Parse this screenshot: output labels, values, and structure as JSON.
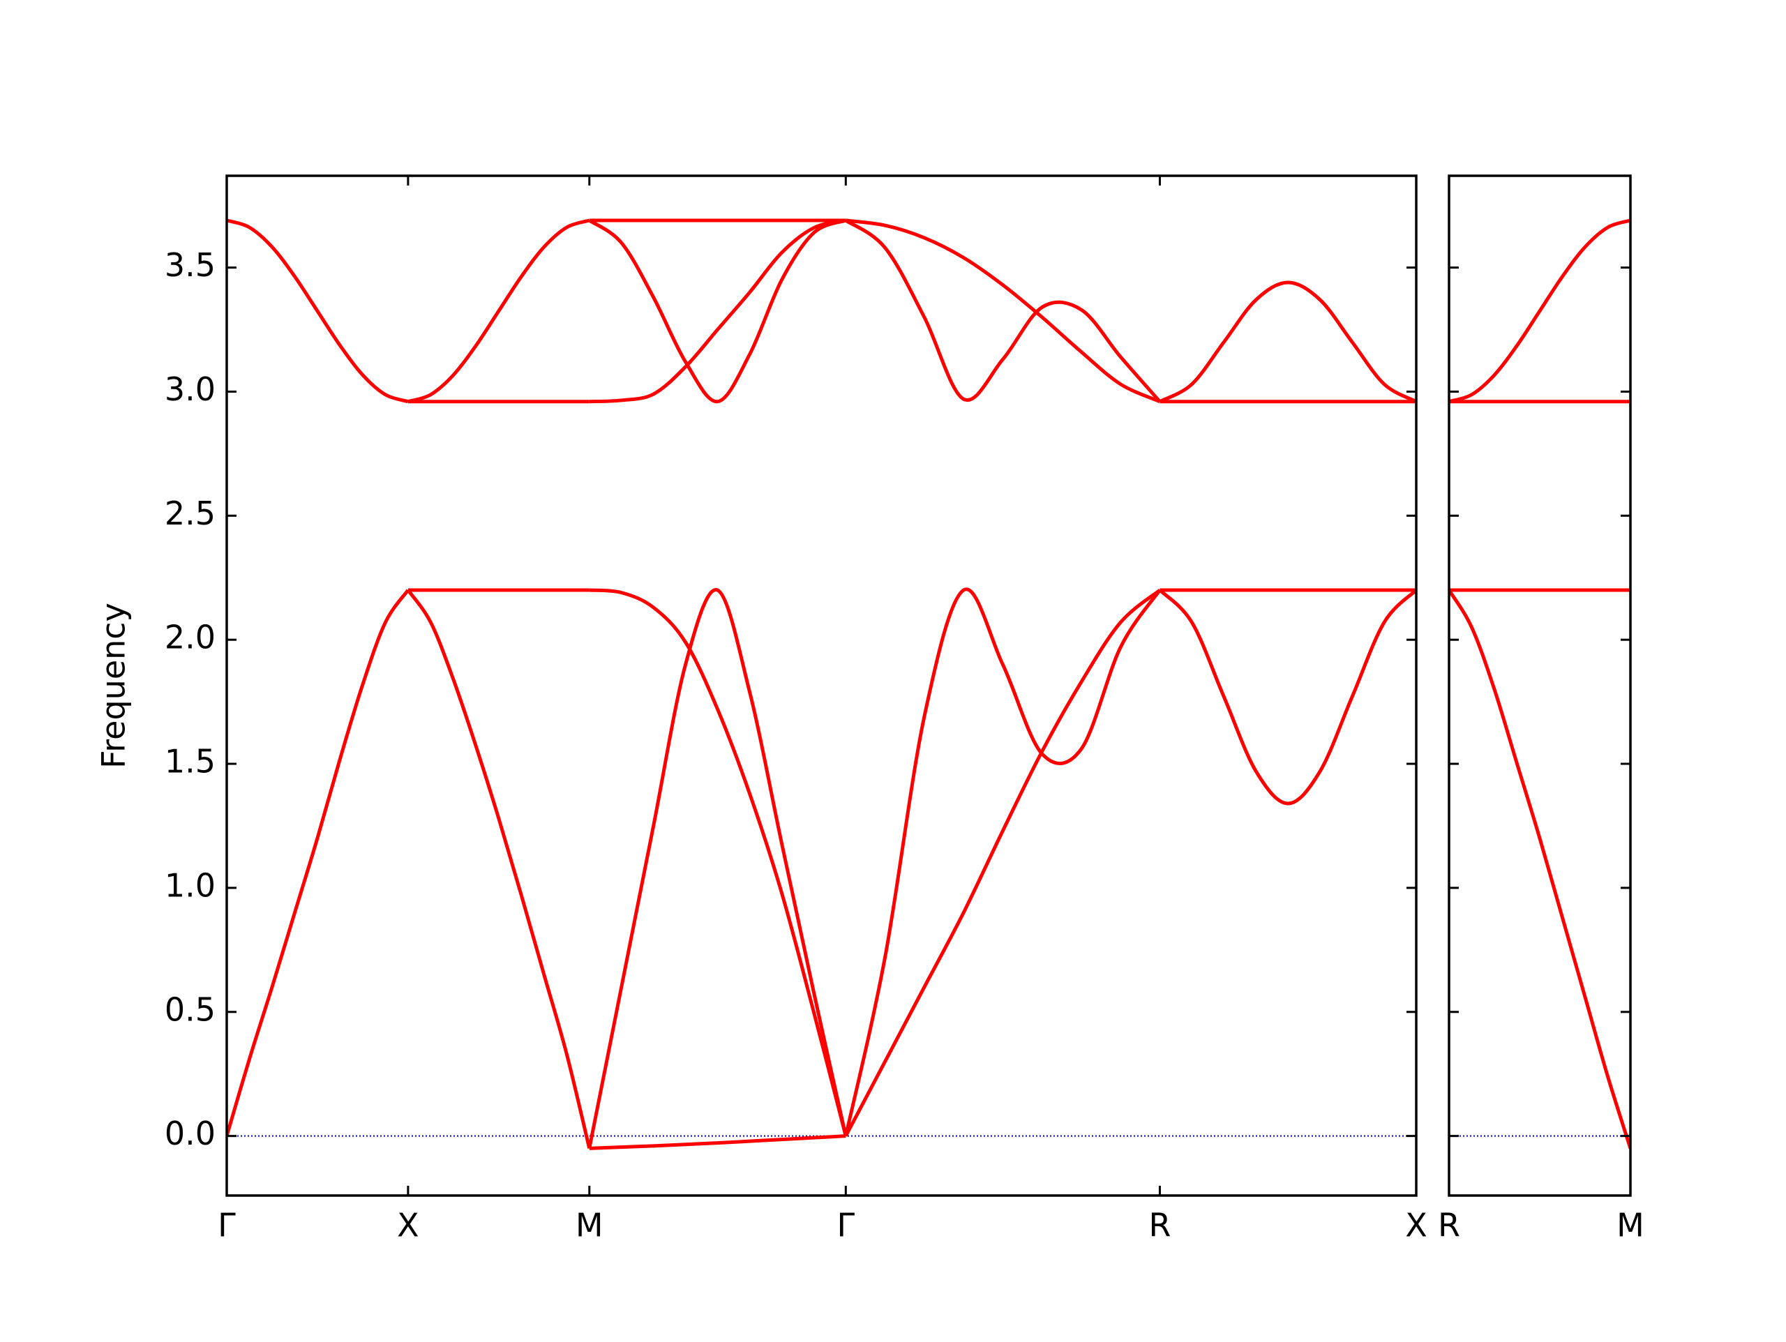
{
  "chart_data": [
    {
      "type": "line",
      "ylabel": "Frequency",
      "line_color": "#ff0000",
      "hline": 0,
      "hline_color": "#0000cc",
      "xlim": [
        0,
        6.5605
      ],
      "ylim": [
        -0.24,
        3.87
      ],
      "xticks": [
        {
          "value": 0,
          "label": "Γ"
        },
        {
          "value": 1,
          "label": "X"
        },
        {
          "value": 2,
          "label": "M"
        },
        {
          "value": 3.4142,
          "label": "Γ"
        },
        {
          "value": 5.1463,
          "label": "R"
        },
        {
          "value": 6.5605,
          "label": "X"
        }
      ],
      "yticks": [
        {
          "value": 0,
          "label": "0.0"
        },
        0.5,
        {
          "value": 1,
          "label": "1.0"
        },
        1.5,
        {
          "value": 2,
          "label": "2.0"
        },
        2.5,
        {
          "value": 3,
          "label": "3.0"
        },
        3.5
      ],
      "show_ytick_labels": true,
      "series": [
        {
          "x": [
            0,
            0.125,
            0.25,
            0.375,
            0.5,
            0.625,
            0.75,
            0.875,
            1
          ],
          "values": [
            3.69,
            3.662,
            3.583,
            3.464,
            3.325,
            3.186,
            3.067,
            2.988,
            2.96
          ]
        },
        {
          "x": [
            0,
            0.125,
            0.25,
            0.375,
            0.5,
            0.625,
            0.75,
            0.875,
            1
          ],
          "values": [
            0,
            0.31,
            0.6,
            0.9,
            1.2,
            1.52,
            1.82,
            2.07,
            2.2
          ]
        },
        {
          "x": [
            1,
            1.125,
            1.25,
            1.375,
            1.5,
            1.625,
            1.75,
            1.875,
            2
          ],
          "values": [
            2.96,
            2.988,
            3.067,
            3.186,
            3.325,
            3.464,
            3.583,
            3.662,
            3.69
          ]
        },
        {
          "x": [
            1,
            2
          ],
          "values": [
            2.96,
            2.96
          ]
        },
        {
          "x": [
            1,
            2
          ],
          "values": [
            2.2,
            2.2
          ]
        },
        {
          "x": [
            1,
            1.125,
            1.25,
            1.375,
            1.5,
            1.625,
            1.75,
            1.875,
            2
          ],
          "values": [
            2.2,
            2.07,
            1.84,
            1.57,
            1.28,
            0.97,
            0.65,
            0.33,
            -0.05
          ]
        },
        {
          "x": [
            2,
            3.4142
          ],
          "values": [
            3.69,
            3.69
          ]
        },
        {
          "x": [
            2,
            2.1768,
            2.3536,
            2.5303,
            2.7071,
            2.8839,
            3.0607,
            3.2374,
            3.4142
          ],
          "values": [
            3.69,
            3.6,
            3.38,
            3.12,
            2.96,
            3.15,
            3.45,
            3.64,
            3.69
          ]
        },
        {
          "x": [
            2,
            2.1768,
            2.3536,
            2.5303,
            2.7071,
            2.8839,
            3.0607,
            3.2374,
            3.4142
          ],
          "values": [
            2.96,
            2.965,
            2.99,
            3.1,
            3.25,
            3.4,
            3.56,
            3.66,
            3.69
          ]
        },
        {
          "x": [
            2,
            2.1768,
            2.3536,
            2.5303,
            2.7071,
            2.8839,
            3.0607,
            3.2374,
            3.4142
          ],
          "values": [
            2.2,
            2.19,
            2.13,
            1.99,
            1.72,
            1.38,
            0.98,
            0.5,
            0
          ]
        },
        {
          "x": [
            2,
            2.1768,
            2.3536,
            2.5303,
            2.7071,
            2.8839,
            3.0607,
            3.2374,
            3.4142
          ],
          "values": [
            -0.05,
            0.6,
            1.25,
            1.9,
            2.2,
            1.79,
            1.18,
            0.58,
            0
          ]
        },
        {
          "x": [
            2,
            2.1768,
            2.3536,
            2.5303,
            2.7071,
            2.8839,
            3.0607,
            3.2374,
            3.4142
          ],
          "values": [
            -0.05,
            -0.045,
            -0.04,
            -0.034,
            -0.028,
            -0.021,
            -0.014,
            -0.007,
            0
          ]
        },
        {
          "x": [
            3.4142,
            3.6307,
            3.8472,
            4.0637,
            4.2802,
            4.4968,
            4.7133,
            4.9298,
            5.1463
          ],
          "values": [
            3.69,
            3.67,
            3.62,
            3.54,
            3.43,
            3.3,
            3.16,
            3.03,
            2.96
          ]
        },
        {
          "x": [
            3.4142,
            3.6307,
            3.8472,
            4.0637,
            4.2802,
            4.4968,
            4.7133,
            4.9298,
            5.1463
          ],
          "values": [
            3.69,
            3.58,
            3.3,
            2.97,
            3.13,
            3.34,
            3.33,
            3.14,
            2.96
          ]
        },
        {
          "x": [
            3.4142,
            3.6307,
            3.8472,
            4.0637,
            4.2802,
            4.4968,
            4.7133,
            4.9298,
            5.1463
          ],
          "values": [
            0,
            0.72,
            1.69,
            2.2,
            1.9,
            1.54,
            1.56,
            1.97,
            2.2
          ]
        },
        {
          "x": [
            3.4142,
            3.6307,
            3.8472,
            4.0637,
            4.2802,
            4.4968,
            4.7133,
            4.9298,
            5.1463
          ],
          "values": [
            0,
            0.3,
            0.6,
            0.9,
            1.23,
            1.55,
            1.83,
            2.07,
            2.2
          ]
        },
        {
          "x": [
            5.1463,
            6.5605
          ],
          "values": [
            2.96,
            2.96
          ]
        },
        {
          "x": [
            5.1463,
            5.3231,
            5.4998,
            5.6766,
            5.8534,
            6.0302,
            6.2069,
            6.3837,
            6.5605
          ],
          "values": [
            2.96,
            3.03,
            3.2,
            3.37,
            3.44,
            3.37,
            3.2,
            3.03,
            2.96
          ]
        },
        {
          "x": [
            5.1463,
            6.5605
          ],
          "values": [
            2.2,
            2.2
          ]
        },
        {
          "x": [
            5.1463,
            5.3231,
            5.4998,
            5.6766,
            5.8534,
            6.0302,
            6.2069,
            6.3837,
            6.5605
          ],
          "values": [
            2.2,
            2.07,
            1.77,
            1.47,
            1.34,
            1.47,
            1.77,
            2.07,
            2.2
          ]
        }
      ]
    },
    {
      "type": "line",
      "line_color": "#ff0000",
      "hline": 0,
      "hline_color": "#0000cc",
      "xlim": [
        0,
        1
      ],
      "ylim": [
        -0.24,
        3.87
      ],
      "xticks": [
        {
          "value": 0,
          "label": "R"
        },
        {
          "value": 1,
          "label": "M"
        }
      ],
      "yticks": [
        0,
        0.5,
        1,
        1.5,
        2,
        2.5,
        3,
        3.5
      ],
      "show_ytick_labels": false,
      "series": [
        {
          "x": [
            0,
            0.125,
            0.25,
            0.375,
            0.5,
            0.625,
            0.75,
            0.875,
            1
          ],
          "values": [
            2.96,
            2.988,
            3.067,
            3.186,
            3.325,
            3.464,
            3.583,
            3.662,
            3.69
          ]
        },
        {
          "x": [
            0,
            1
          ],
          "values": [
            2.96,
            2.96
          ]
        },
        {
          "x": [
            0,
            1
          ],
          "values": [
            2.2,
            2.2
          ]
        },
        {
          "x": [
            0,
            0.125,
            0.25,
            0.375,
            0.5,
            0.625,
            0.75,
            0.875,
            1
          ],
          "values": [
            2.2,
            2.05,
            1.8,
            1.5,
            1.2,
            0.88,
            0.56,
            0.24,
            -0.05
          ]
        }
      ]
    }
  ]
}
